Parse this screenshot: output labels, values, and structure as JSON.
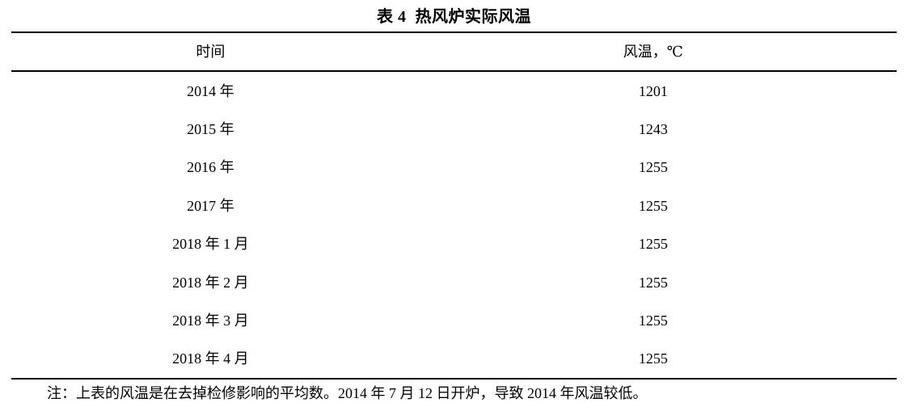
{
  "table": {
    "title": "表 4  热风炉实际风温",
    "columns": [
      {
        "label": "时间"
      },
      {
        "label": "风温，℃"
      }
    ],
    "rows": [
      {
        "time": "2014 年",
        "temp": "1201"
      },
      {
        "time": "2015 年",
        "temp": "1243"
      },
      {
        "time": "2016 年",
        "temp": "1255"
      },
      {
        "time": "2017 年",
        "temp": "1255"
      },
      {
        "time": "2018 年 1 月",
        "temp": "1255"
      },
      {
        "time": "2018 年 2 月",
        "temp": "1255"
      },
      {
        "time": "2018 年 3 月",
        "temp": "1255"
      },
      {
        "time": "2018 年 4 月",
        "temp": "1255"
      }
    ],
    "note": "注：上表的风温是在去掉检修影响的平均数。2014 年 7 月 12 日开炉，导致 2014 年风温较低。",
    "text_color": "#000000",
    "background_color": "#ffffff"
  }
}
